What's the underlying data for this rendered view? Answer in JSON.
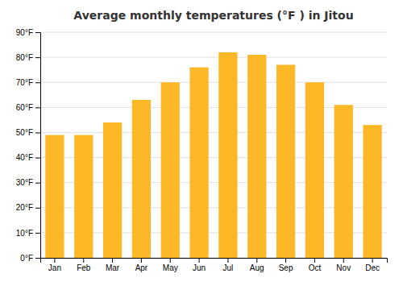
{
  "chart_data": {
    "type": "bar",
    "title": "Average monthly temperatures (°F ) in Jitou",
    "categories": [
      "Jan",
      "Feb",
      "Mar",
      "Apr",
      "May",
      "Jun",
      "Jul",
      "Aug",
      "Sep",
      "Oct",
      "Nov",
      "Dec"
    ],
    "values": [
      49,
      49,
      54,
      63,
      70,
      76,
      82,
      81,
      77,
      70,
      61,
      53
    ],
    "color": "#FDB827",
    "ylim": [
      0,
      90
    ],
    "yticks": [
      {
        "value": 0,
        "label": "0°F"
      },
      {
        "value": 10,
        "label": "10°F"
      },
      {
        "value": 20,
        "label": "20°F"
      },
      {
        "value": 30,
        "label": "30°F"
      },
      {
        "value": 40,
        "label": "40°F"
      },
      {
        "value": 50,
        "label": "50°F"
      },
      {
        "value": 60,
        "label": "60°F"
      },
      {
        "value": 70,
        "label": "70°F"
      },
      {
        "value": 80,
        "label": "80°F"
      },
      {
        "value": 90,
        "label": "90°F"
      }
    ],
    "grid": true
  }
}
